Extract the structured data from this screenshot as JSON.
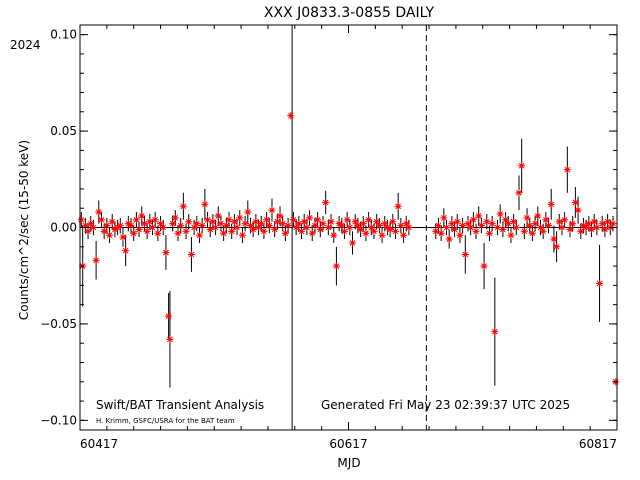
{
  "page": {
    "title": "XXX J0833.3-0855 DAILY",
    "year_label": "2024",
    "ylabel": "Counts/cm^2/sec (15-50 keV)",
    "xlabel": "MJD",
    "footer_left": "Swift/BAT Transient Analysis",
    "footer_credit": "H. Krimm, GSFC/USRA for the BAT team",
    "footer_generated": "Generated Fri May 23 02:39:37 UTC 2025"
  },
  "colors": {
    "marker": "#ff0000",
    "axes": "#000000"
  },
  "chart_data": {
    "type": "scatter",
    "title": "XXX J0833.3-0855 DAILY",
    "xlabel": "MJD",
    "ylabel": "Counts/cm^2/sec (15-50 keV)",
    "xlim": [
      60417,
      60817
    ],
    "ylim": [
      -0.105,
      0.105
    ],
    "x_ticks": [
      60417,
      60617,
      60817
    ],
    "x_tick_labels": [
      "60417",
      "60617",
      "60817"
    ],
    "y_ticks": [
      -0.1,
      -0.05,
      0.0,
      0.05,
      0.1
    ],
    "y_tick_labels": [
      "−0.10",
      "−0.05",
      "0.00",
      "0.05",
      "0.10"
    ],
    "grid": false,
    "reference_lines": [
      {
        "x": 60575,
        "style": "solid"
      },
      {
        "x": 60675,
        "style": "dashed"
      }
    ],
    "points": [
      {
        "x": 60418,
        "y": 0.004,
        "err": 0.004
      },
      {
        "x": 60419,
        "y": -0.02,
        "err": 0.021
      },
      {
        "x": 60421,
        "y": 0.001,
        "err": 0.004
      },
      {
        "x": 60423,
        "y": -0.002,
        "err": 0.004
      },
      {
        "x": 60425,
        "y": 0.002,
        "err": 0.004
      },
      {
        "x": 60427,
        "y": 0.0,
        "err": 0.004
      },
      {
        "x": 60429,
        "y": -0.017,
        "err": 0.01
      },
      {
        "x": 60431,
        "y": 0.008,
        "err": 0.006
      },
      {
        "x": 60433,
        "y": 0.004,
        "err": 0.004
      },
      {
        "x": 60435,
        "y": -0.002,
        "err": 0.004
      },
      {
        "x": 60437,
        "y": 0.001,
        "err": 0.004
      },
      {
        "x": 60439,
        "y": -0.004,
        "err": 0.004
      },
      {
        "x": 60441,
        "y": 0.003,
        "err": 0.004
      },
      {
        "x": 60443,
        "y": -0.001,
        "err": 0.004
      },
      {
        "x": 60445,
        "y": 0.0,
        "err": 0.004
      },
      {
        "x": 60447,
        "y": 0.001,
        "err": 0.004
      },
      {
        "x": 60449,
        "y": -0.005,
        "err": 0.005
      },
      {
        "x": 60451,
        "y": -0.012,
        "err": 0.008
      },
      {
        "x": 60453,
        "y": 0.002,
        "err": 0.004
      },
      {
        "x": 60455,
        "y": 0.001,
        "err": 0.004
      },
      {
        "x": 60457,
        "y": -0.003,
        "err": 0.004
      },
      {
        "x": 60459,
        "y": 0.004,
        "err": 0.004
      },
      {
        "x": 60461,
        "y": -0.001,
        "err": 0.004
      },
      {
        "x": 60463,
        "y": 0.006,
        "err": 0.005
      },
      {
        "x": 60465,
        "y": 0.002,
        "err": 0.004
      },
      {
        "x": 60467,
        "y": -0.002,
        "err": 0.004
      },
      {
        "x": 60469,
        "y": 0.003,
        "err": 0.004
      },
      {
        "x": 60471,
        "y": 0.0,
        "err": 0.004
      },
      {
        "x": 60473,
        "y": 0.004,
        "err": 0.004
      },
      {
        "x": 60475,
        "y": -0.003,
        "err": 0.004
      },
      {
        "x": 60477,
        "y": 0.002,
        "err": 0.004
      },
      {
        "x": 60479,
        "y": 0.0,
        "err": 0.004
      },
      {
        "x": 60481,
        "y": -0.013,
        "err": 0.009
      },
      {
        "x": 60483,
        "y": -0.046,
        "err": 0.012
      },
      {
        "x": 60484,
        "y": -0.058,
        "err": 0.025
      },
      {
        "x": 60486,
        "y": 0.002,
        "err": 0.004
      },
      {
        "x": 60488,
        "y": 0.005,
        "err": 0.004
      },
      {
        "x": 60490,
        "y": -0.003,
        "err": 0.004
      },
      {
        "x": 60492,
        "y": 0.001,
        "err": 0.004
      },
      {
        "x": 60494,
        "y": 0.011,
        "err": 0.007
      },
      {
        "x": 60496,
        "y": -0.002,
        "err": 0.004
      },
      {
        "x": 60498,
        "y": 0.003,
        "err": 0.004
      },
      {
        "x": 60500,
        "y": -0.014,
        "err": 0.009
      },
      {
        "x": 60502,
        "y": 0.0,
        "err": 0.004
      },
      {
        "x": 60504,
        "y": 0.002,
        "err": 0.004
      },
      {
        "x": 60506,
        "y": -0.004,
        "err": 0.004
      },
      {
        "x": 60508,
        "y": 0.001,
        "err": 0.004
      },
      {
        "x": 60510,
        "y": 0.012,
        "err": 0.008
      },
      {
        "x": 60512,
        "y": 0.004,
        "err": 0.004
      },
      {
        "x": 60514,
        "y": -0.001,
        "err": 0.004
      },
      {
        "x": 60516,
        "y": 0.003,
        "err": 0.004
      },
      {
        "x": 60518,
        "y": 0.0,
        "err": 0.004
      },
      {
        "x": 60520,
        "y": 0.006,
        "err": 0.005
      },
      {
        "x": 60522,
        "y": 0.002,
        "err": 0.004
      },
      {
        "x": 60524,
        "y": -0.003,
        "err": 0.004
      },
      {
        "x": 60526,
        "y": 0.001,
        "err": 0.004
      },
      {
        "x": 60528,
        "y": 0.004,
        "err": 0.004
      },
      {
        "x": 60530,
        "y": -0.002,
        "err": 0.004
      },
      {
        "x": 60532,
        "y": 0.003,
        "err": 0.004
      },
      {
        "x": 60534,
        "y": 0.0,
        "err": 0.004
      },
      {
        "x": 60536,
        "y": 0.005,
        "err": 0.004
      },
      {
        "x": 60538,
        "y": -0.004,
        "err": 0.004
      },
      {
        "x": 60540,
        "y": 0.002,
        "err": 0.004
      },
      {
        "x": 60542,
        "y": 0.008,
        "err": 0.006
      },
      {
        "x": 60544,
        "y": 0.001,
        "err": 0.004
      },
      {
        "x": 60546,
        "y": -0.001,
        "err": 0.004
      },
      {
        "x": 60548,
        "y": 0.003,
        "err": 0.004
      },
      {
        "x": 60550,
        "y": 0.0,
        "err": 0.004
      },
      {
        "x": 60552,
        "y": 0.002,
        "err": 0.004
      },
      {
        "x": 60554,
        "y": -0.002,
        "err": 0.004
      },
      {
        "x": 60556,
        "y": 0.004,
        "err": 0.004
      },
      {
        "x": 60558,
        "y": 0.001,
        "err": 0.004
      },
      {
        "x": 60560,
        "y": 0.009,
        "err": 0.006
      },
      {
        "x": 60562,
        "y": -0.001,
        "err": 0.004
      },
      {
        "x": 60564,
        "y": 0.003,
        "err": 0.004
      },
      {
        "x": 60566,
        "y": 0.006,
        "err": 0.005
      },
      {
        "x": 60568,
        "y": 0.002,
        "err": 0.004
      },
      {
        "x": 60570,
        "y": -0.003,
        "err": 0.004
      },
      {
        "x": 60572,
        "y": 0.001,
        "err": 0.004
      },
      {
        "x": 60574,
        "y": 0.058,
        "err": 0.0
      },
      {
        "x": 60576,
        "y": 0.004,
        "err": 0.004
      },
      {
        "x": 60578,
        "y": 0.0,
        "err": 0.004
      },
      {
        "x": 60580,
        "y": 0.002,
        "err": 0.004
      },
      {
        "x": 60582,
        "y": -0.002,
        "err": 0.004
      },
      {
        "x": 60584,
        "y": 0.003,
        "err": 0.004
      },
      {
        "x": 60586,
        "y": 0.0,
        "err": 0.004
      },
      {
        "x": 60588,
        "y": 0.005,
        "err": 0.004
      },
      {
        "x": 60590,
        "y": -0.003,
        "err": 0.004
      },
      {
        "x": 60592,
        "y": 0.001,
        "err": 0.004
      },
      {
        "x": 60594,
        "y": 0.004,
        "err": 0.004
      },
      {
        "x": 60596,
        "y": -0.001,
        "err": 0.004
      },
      {
        "x": 60598,
        "y": 0.002,
        "err": 0.004
      },
      {
        "x": 60600,
        "y": 0.013,
        "err": 0.006
      },
      {
        "x": 60602,
        "y": 0.0,
        "err": 0.004
      },
      {
        "x": 60604,
        "y": 0.003,
        "err": 0.004
      },
      {
        "x": 60606,
        "y": -0.004,
        "err": 0.004
      },
      {
        "x": 60608,
        "y": -0.02,
        "err": 0.01
      },
      {
        "x": 60610,
        "y": 0.002,
        "err": 0.004
      },
      {
        "x": 60612,
        "y": 0.001,
        "err": 0.004
      },
      {
        "x": 60614,
        "y": -0.002,
        "err": 0.004
      },
      {
        "x": 60616,
        "y": 0.004,
        "err": 0.004
      },
      {
        "x": 60618,
        "y": 0.0,
        "err": 0.004
      },
      {
        "x": 60620,
        "y": -0.008,
        "err": 0.006
      },
      {
        "x": 60622,
        "y": 0.003,
        "err": 0.004
      },
      {
        "x": 60624,
        "y": 0.001,
        "err": 0.004
      },
      {
        "x": 60626,
        "y": -0.001,
        "err": 0.004
      },
      {
        "x": 60628,
        "y": 0.002,
        "err": 0.004
      },
      {
        "x": 60630,
        "y": -0.003,
        "err": 0.004
      },
      {
        "x": 60632,
        "y": 0.004,
        "err": 0.004
      },
      {
        "x": 60634,
        "y": 0.0,
        "err": 0.004
      },
      {
        "x": 60636,
        "y": -0.002,
        "err": 0.004
      },
      {
        "x": 60638,
        "y": 0.003,
        "err": 0.004
      },
      {
        "x": 60640,
        "y": 0.001,
        "err": 0.004
      },
      {
        "x": 60642,
        "y": -0.004,
        "err": 0.004
      },
      {
        "x": 60644,
        "y": 0.002,
        "err": 0.004
      },
      {
        "x": 60646,
        "y": 0.0,
        "err": 0.004
      },
      {
        "x": 60648,
        "y": -0.001,
        "err": 0.004
      },
      {
        "x": 60650,
        "y": 0.003,
        "err": 0.004
      },
      {
        "x": 60652,
        "y": -0.002,
        "err": 0.004
      },
      {
        "x": 60654,
        "y": 0.011,
        "err": 0.007
      },
      {
        "x": 60656,
        "y": 0.001,
        "err": 0.004
      },
      {
        "x": 60658,
        "y": -0.004,
        "err": 0.004
      },
      {
        "x": 60660,
        "y": 0.002,
        "err": 0.004
      },
      {
        "x": 60662,
        "y": 0.0,
        "err": 0.004
      },
      {
        "x": 60682,
        "y": -0.002,
        "err": 0.004
      },
      {
        "x": 60684,
        "y": 0.001,
        "err": 0.004
      },
      {
        "x": 60686,
        "y": -0.003,
        "err": 0.004
      },
      {
        "x": 60688,
        "y": 0.005,
        "err": 0.005
      },
      {
        "x": 60690,
        "y": 0.0,
        "err": 0.004
      },
      {
        "x": 60692,
        "y": -0.006,
        "err": 0.005
      },
      {
        "x": 60694,
        "y": 0.002,
        "err": 0.004
      },
      {
        "x": 60696,
        "y": -0.001,
        "err": 0.004
      },
      {
        "x": 60698,
        "y": 0.003,
        "err": 0.004
      },
      {
        "x": 60700,
        "y": -0.004,
        "err": 0.004
      },
      {
        "x": 60702,
        "y": 0.001,
        "err": 0.004
      },
      {
        "x": 60704,
        "y": -0.014,
        "err": 0.01
      },
      {
        "x": 60706,
        "y": 0.002,
        "err": 0.004
      },
      {
        "x": 60708,
        "y": 0.0,
        "err": 0.004
      },
      {
        "x": 60710,
        "y": 0.004,
        "err": 0.004
      },
      {
        "x": 60712,
        "y": -0.002,
        "err": 0.004
      },
      {
        "x": 60714,
        "y": 0.006,
        "err": 0.005
      },
      {
        "x": 60716,
        "y": 0.001,
        "err": 0.004
      },
      {
        "x": 60718,
        "y": -0.02,
        "err": 0.012
      },
      {
        "x": 60720,
        "y": 0.003,
        "err": 0.004
      },
      {
        "x": 60722,
        "y": -0.003,
        "err": 0.004
      },
      {
        "x": 60724,
        "y": 0.002,
        "err": 0.004
      },
      {
        "x": 60726,
        "y": -0.054,
        "err": 0.028
      },
      {
        "x": 60728,
        "y": 0.0,
        "err": 0.004
      },
      {
        "x": 60730,
        "y": 0.007,
        "err": 0.005
      },
      {
        "x": 60732,
        "y": -0.001,
        "err": 0.004
      },
      {
        "x": 60734,
        "y": 0.004,
        "err": 0.004
      },
      {
        "x": 60736,
        "y": 0.002,
        "err": 0.004
      },
      {
        "x": 60738,
        "y": -0.004,
        "err": 0.004
      },
      {
        "x": 60740,
        "y": 0.003,
        "err": 0.004
      },
      {
        "x": 60742,
        "y": 0.0,
        "err": 0.004
      },
      {
        "x": 60744,
        "y": 0.018,
        "err": 0.009
      },
      {
        "x": 60746,
        "y": 0.032,
        "err": 0.014
      },
      {
        "x": 60748,
        "y": -0.002,
        "err": 0.004
      },
      {
        "x": 60750,
        "y": 0.005,
        "err": 0.005
      },
      {
        "x": 60752,
        "y": 0.001,
        "err": 0.004
      },
      {
        "x": 60754,
        "y": -0.003,
        "err": 0.004
      },
      {
        "x": 60756,
        "y": 0.002,
        "err": 0.004
      },
      {
        "x": 60758,
        "y": 0.006,
        "err": 0.005
      },
      {
        "x": 60760,
        "y": 0.0,
        "err": 0.004
      },
      {
        "x": 60762,
        "y": -0.002,
        "err": 0.004
      },
      {
        "x": 60764,
        "y": 0.004,
        "err": 0.004
      },
      {
        "x": 60766,
        "y": 0.001,
        "err": 0.004
      },
      {
        "x": 60768,
        "y": 0.012,
        "err": 0.008
      },
      {
        "x": 60770,
        "y": -0.006,
        "err": 0.007
      },
      {
        "x": 60772,
        "y": -0.01,
        "err": 0.008
      },
      {
        "x": 60774,
        "y": 0.003,
        "err": 0.004
      },
      {
        "x": 60776,
        "y": 0.0,
        "err": 0.004
      },
      {
        "x": 60778,
        "y": 0.004,
        "err": 0.004
      },
      {
        "x": 60780,
        "y": 0.03,
        "err": 0.012
      },
      {
        "x": 60782,
        "y": -0.001,
        "err": 0.004
      },
      {
        "x": 60784,
        "y": 0.002,
        "err": 0.004
      },
      {
        "x": 60786,
        "y": 0.013,
        "err": 0.008
      },
      {
        "x": 60788,
        "y": 0.009,
        "err": 0.007
      },
      {
        "x": 60790,
        "y": -0.002,
        "err": 0.004
      },
      {
        "x": 60792,
        "y": 0.001,
        "err": 0.004
      },
      {
        "x": 60794,
        "y": 0.0,
        "err": 0.004
      },
      {
        "x": 60796,
        "y": 0.002,
        "err": 0.004
      },
      {
        "x": 60798,
        "y": -0.001,
        "err": 0.004
      },
      {
        "x": 60800,
        "y": 0.003,
        "err": 0.004
      },
      {
        "x": 60802,
        "y": 0.0,
        "err": 0.004
      },
      {
        "x": 60804,
        "y": -0.029,
        "err": 0.02
      },
      {
        "x": 60806,
        "y": 0.002,
        "err": 0.004
      },
      {
        "x": 60808,
        "y": -0.001,
        "err": 0.004
      },
      {
        "x": 60810,
        "y": 0.003,
        "err": 0.004
      },
      {
        "x": 60812,
        "y": 0.0,
        "err": 0.004
      },
      {
        "x": 60814,
        "y": 0.002,
        "err": 0.004
      },
      {
        "x": 60816,
        "y": -0.08,
        "err": 0.0
      }
    ]
  }
}
